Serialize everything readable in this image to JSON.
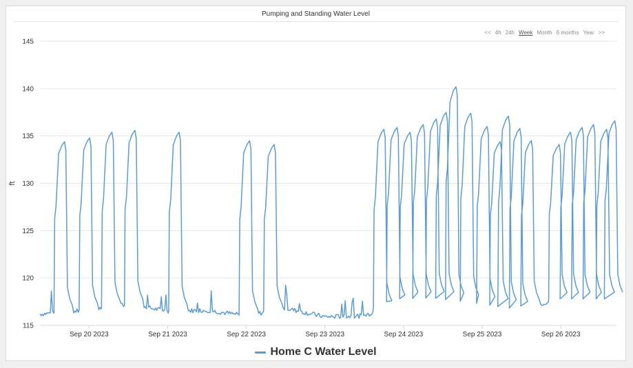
{
  "range_nav": {
    "prev": "<<",
    "items": [
      "4h",
      "24h",
      "Week",
      "Month",
      "6 months",
      "Year"
    ],
    "active": "Week",
    "next": ">>"
  },
  "colors": {
    "series": "#5b9bd5",
    "grid": "#e6e6e6",
    "axis": "#333333"
  },
  "chart_data": {
    "type": "line",
    "title": "Pumping and Standing Water Level",
    "ylabel": "ft",
    "xlabel": "",
    "ylim": [
      115,
      145
    ],
    "yticks": [
      115,
      120,
      125,
      130,
      135,
      140,
      145
    ],
    "xlim": [
      "2023-09-19 09:00",
      "2023-09-26 17:00"
    ],
    "xticks": [
      "Sep 20 2023",
      "Sep 21 2023",
      "Sep 22 2023",
      "Sep 23 2023",
      "Sep 24 2023",
      "Sep 25 2023",
      "Sep 26 2023"
    ],
    "grid": true,
    "legend_position": "bottom-center",
    "series": [
      {
        "name": "Home C Water Level",
        "baseline": [
          [
            "2023-09-19 09:00",
            116.2
          ],
          [
            "2023-09-20 00:00",
            116.6
          ],
          [
            "2023-09-20 12:00",
            117.2
          ],
          [
            "2023-09-21 00:00",
            116.5
          ],
          [
            "2023-09-21 12:00",
            116.6
          ],
          [
            "2023-09-22 00:00",
            116.0
          ],
          [
            "2023-09-22 12:00",
            116.8
          ],
          [
            "2023-09-23 00:00",
            115.9
          ],
          [
            "2023-09-23 12:00",
            116.0
          ],
          [
            "2023-09-24 00:00",
            117.8
          ],
          [
            "2023-09-24 12:00",
            117.9
          ],
          [
            "2023-09-25 00:00",
            117.4
          ],
          [
            "2023-09-25 12:00",
            116.8
          ],
          [
            "2023-09-26 00:00",
            117.8
          ],
          [
            "2023-09-26 17:00",
            117.8
          ]
        ],
        "peaks": [
          [
            "2023-09-19 16:30",
            134.4
          ],
          [
            "2023-09-20 00:10",
            134.8
          ],
          [
            "2023-09-20 07:00",
            135.4
          ],
          [
            "2023-09-20 14:00",
            135.6
          ],
          [
            "2023-09-21 03:30",
            135.4
          ],
          [
            "2023-09-22 01:00",
            134.5
          ],
          [
            "2023-09-22 08:30",
            134.1
          ],
          [
            "2023-09-23 18:00",
            135.7
          ],
          [
            "2023-09-23 22:00",
            135.9
          ],
          [
            "2023-09-24 02:00",
            135.4
          ],
          [
            "2023-09-24 06:00",
            136.2
          ],
          [
            "2023-09-24 10:00",
            136.8
          ],
          [
            "2023-09-24 13:00",
            137.5
          ],
          [
            "2023-09-24 16:00",
            140.2
          ],
          [
            "2023-09-24 20:30",
            137.4
          ],
          [
            "2023-09-25 01:30",
            136.0
          ],
          [
            "2023-09-25 05:30",
            134.4
          ],
          [
            "2023-09-25 08:00",
            137.1
          ],
          [
            "2023-09-25 11:30",
            135.8
          ],
          [
            "2023-09-25 15:00",
            134.5
          ],
          [
            "2023-09-25 23:30",
            134.1
          ],
          [
            "2023-09-26 03:00",
            135.4
          ],
          [
            "2023-09-26 06:30",
            135.9
          ],
          [
            "2023-09-26 10:00",
            136.2
          ],
          [
            "2023-09-26 14:00",
            135.7
          ],
          [
            "2023-09-26 16:30",
            136.6
          ]
        ]
      }
    ]
  }
}
